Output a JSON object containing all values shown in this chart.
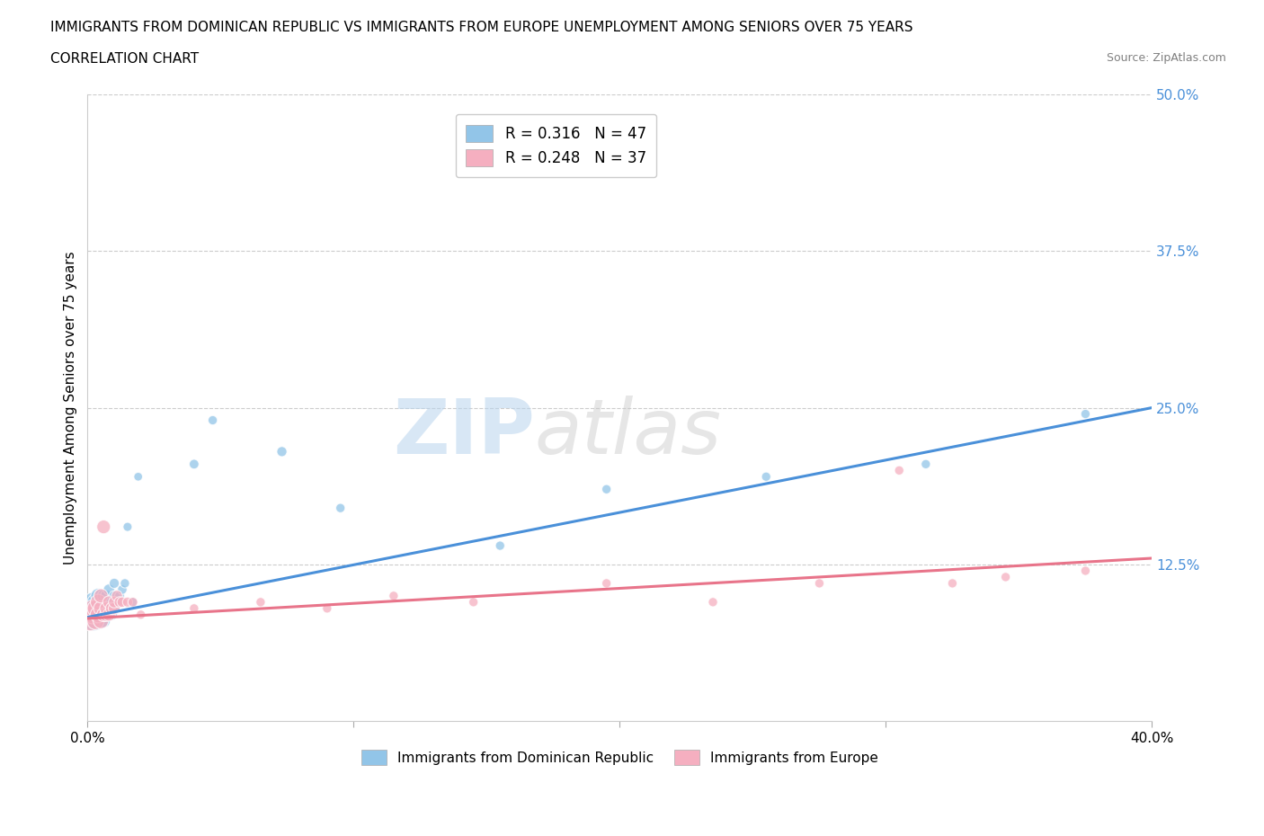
{
  "title_line1": "IMMIGRANTS FROM DOMINICAN REPUBLIC VS IMMIGRANTS FROM EUROPE UNEMPLOYMENT AMONG SENIORS OVER 75 YEARS",
  "title_line2": "CORRELATION CHART",
  "source": "Source: ZipAtlas.com",
  "ylabel": "Unemployment Among Seniors over 75 years",
  "xlim": [
    0.0,
    0.4
  ],
  "ylim": [
    0.0,
    0.5
  ],
  "xticks": [
    0.0,
    0.1,
    0.2,
    0.3,
    0.4
  ],
  "xtick_labels": [
    "0.0%",
    "",
    "",
    "",
    "40.0%"
  ],
  "ytick_labels": [
    "12.5%",
    "25.0%",
    "37.5%",
    "50.0%"
  ],
  "yticks": [
    0.125,
    0.25,
    0.375,
    0.5
  ],
  "legend_r1": "R = 0.316",
  "legend_n1": "N = 47",
  "legend_r2": "R = 0.248",
  "legend_n2": "N = 37",
  "color_blue": "#92c5e8",
  "color_pink": "#f5afc0",
  "color_blue_line": "#4a90d9",
  "color_pink_line": "#e8748a",
  "color_grid": "#cccccc",
  "watermark_zip": "ZIP",
  "watermark_atlas": "atlas",
  "blue_scatter_x": [
    0.001,
    0.001,
    0.002,
    0.002,
    0.003,
    0.003,
    0.003,
    0.003,
    0.004,
    0.004,
    0.004,
    0.004,
    0.005,
    0.005,
    0.005,
    0.005,
    0.005,
    0.006,
    0.006,
    0.006,
    0.006,
    0.007,
    0.007,
    0.007,
    0.008,
    0.008,
    0.008,
    0.009,
    0.01,
    0.01,
    0.01,
    0.011,
    0.012,
    0.013,
    0.014,
    0.015,
    0.017,
    0.019,
    0.04,
    0.047,
    0.073,
    0.095,
    0.155,
    0.195,
    0.255,
    0.315,
    0.375
  ],
  "blue_scatter_y": [
    0.085,
    0.09,
    0.08,
    0.095,
    0.08,
    0.085,
    0.09,
    0.095,
    0.085,
    0.09,
    0.095,
    0.1,
    0.08,
    0.085,
    0.09,
    0.095,
    0.1,
    0.08,
    0.09,
    0.095,
    0.1,
    0.085,
    0.095,
    0.1,
    0.09,
    0.095,
    0.105,
    0.085,
    0.09,
    0.1,
    0.11,
    0.095,
    0.1,
    0.105,
    0.11,
    0.155,
    0.095,
    0.195,
    0.205,
    0.24,
    0.215,
    0.17,
    0.14,
    0.185,
    0.195,
    0.205,
    0.245
  ],
  "blue_scatter_sizes": [
    300,
    280,
    260,
    240,
    220,
    200,
    190,
    180,
    170,
    160,
    150,
    145,
    140,
    135,
    130,
    125,
    120,
    115,
    110,
    105,
    100,
    100,
    95,
    90,
    90,
    85,
    80,
    80,
    75,
    70,
    65,
    65,
    60,
    58,
    55,
    52,
    50,
    48,
    60,
    55,
    65,
    55,
    55,
    55,
    55,
    55,
    55
  ],
  "pink_scatter_x": [
    0.001,
    0.002,
    0.002,
    0.003,
    0.003,
    0.004,
    0.004,
    0.005,
    0.005,
    0.005,
    0.006,
    0.006,
    0.007,
    0.007,
    0.008,
    0.008,
    0.009,
    0.01,
    0.01,
    0.011,
    0.012,
    0.013,
    0.015,
    0.017,
    0.02,
    0.04,
    0.065,
    0.09,
    0.115,
    0.145,
    0.195,
    0.235,
    0.275,
    0.305,
    0.325,
    0.345,
    0.375
  ],
  "pink_scatter_y": [
    0.08,
    0.085,
    0.09,
    0.08,
    0.09,
    0.085,
    0.095,
    0.08,
    0.09,
    0.1,
    0.085,
    0.155,
    0.085,
    0.09,
    0.085,
    0.095,
    0.09,
    0.09,
    0.095,
    0.1,
    0.095,
    0.095,
    0.095,
    0.095,
    0.085,
    0.09,
    0.095,
    0.09,
    0.1,
    0.095,
    0.11,
    0.095,
    0.11,
    0.2,
    0.11,
    0.115,
    0.12
  ],
  "pink_scatter_sizes": [
    250,
    220,
    200,
    190,
    180,
    170,
    160,
    150,
    140,
    130,
    125,
    120,
    115,
    110,
    105,
    100,
    95,
    90,
    85,
    80,
    75,
    70,
    65,
    60,
    55,
    55,
    55,
    55,
    55,
    55,
    55,
    55,
    55,
    55,
    55,
    55,
    55
  ],
  "blue_line_x": [
    0.0,
    0.4
  ],
  "blue_line_y": [
    0.083,
    0.25
  ],
  "pink_line_x": [
    0.0,
    0.4
  ],
  "pink_line_y": [
    0.082,
    0.13
  ]
}
